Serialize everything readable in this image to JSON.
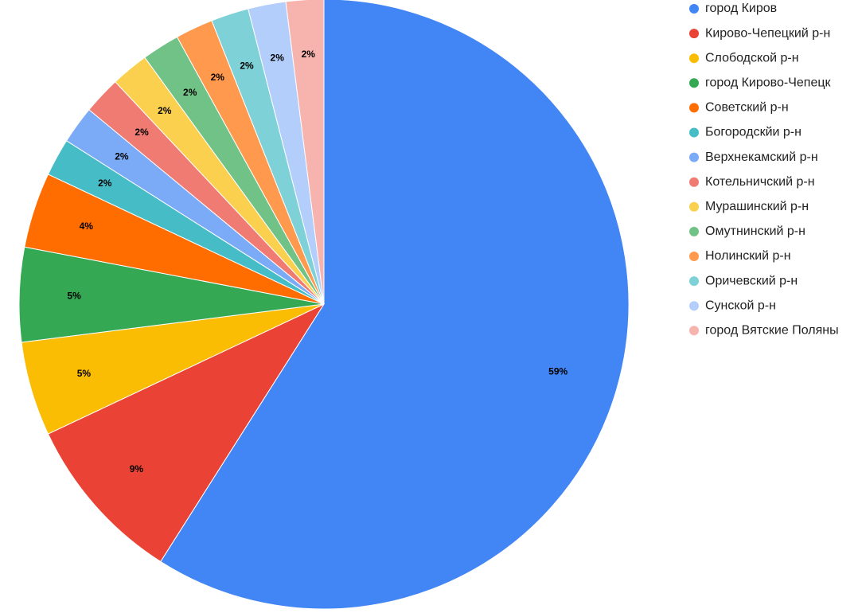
{
  "chart_data": {
    "type": "pie",
    "start_angle_deg": 0,
    "direction": "clockwise",
    "legend_position": "right",
    "slices": [
      {
        "name": "город Киров",
        "value": 59,
        "label": "59%",
        "color": "#4285F4"
      },
      {
        "name": "Кирово-Чепецкий р-н",
        "value": 9,
        "label": "9%",
        "color": "#EA4335"
      },
      {
        "name": "Слободской р-н",
        "value": 5,
        "label": "5%",
        "color": "#FBBC04"
      },
      {
        "name": "город Кирово-Чепецк",
        "value": 5,
        "label": "5%",
        "color": "#34A853"
      },
      {
        "name": "Советский р-н",
        "value": 4,
        "label": "4%",
        "color": "#FF6D01"
      },
      {
        "name": "Богородскйи р-н",
        "value": 2,
        "label": "2%",
        "color": "#46BDC6"
      },
      {
        "name": "Верхнекамский р-н",
        "value": 2,
        "label": "2%",
        "color": "#7BAAF7"
      },
      {
        "name": "Котельничский р-н",
        "value": 2,
        "label": "2%",
        "color": "#F07B72"
      },
      {
        "name": "Мурашинский р-н",
        "value": 2,
        "label": "2%",
        "color": "#FCD04F"
      },
      {
        "name": "Омутнинский р-н",
        "value": 2,
        "label": "2%",
        "color": "#71C287"
      },
      {
        "name": "Нолинский р-н",
        "value": 2,
        "label": "2%",
        "color": "#FF994D"
      },
      {
        "name": "Оричевский р-н",
        "value": 2,
        "label": "2%",
        "color": "#7ED1D7"
      },
      {
        "name": "Сунской р-н",
        "value": 2,
        "label": "2%",
        "color": "#B3CEFB"
      },
      {
        "name": "город Вятские Поляны",
        "value": 2,
        "label": "2%",
        "color": "#F7B4AE"
      }
    ]
  }
}
